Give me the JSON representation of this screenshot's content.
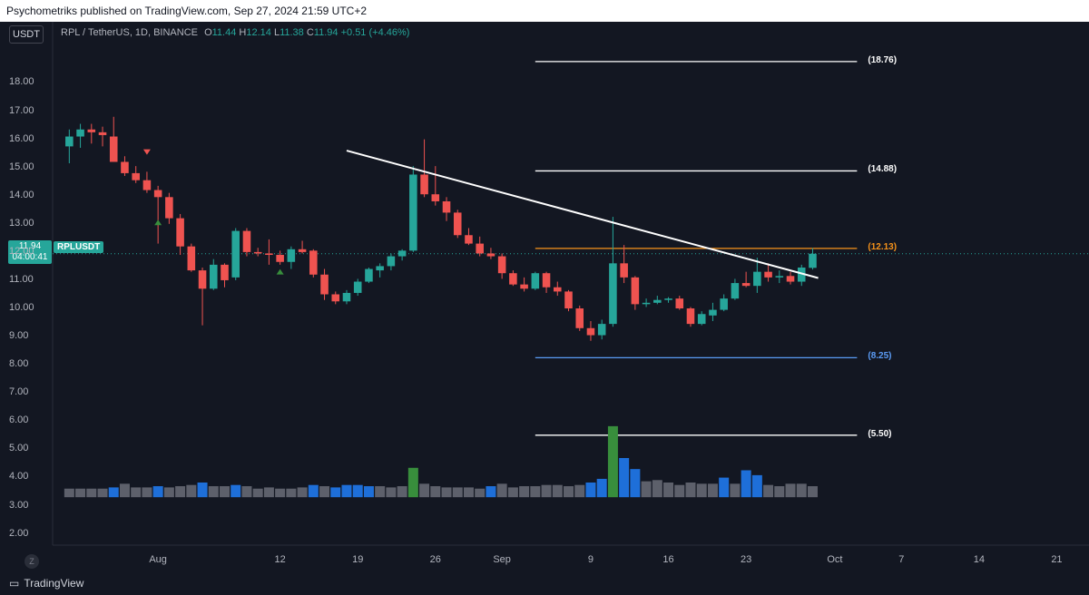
{
  "header": {
    "publisher_text": "Psychometriks published on TradingView.com, Sep 27, 2024 21:59 UTC+2"
  },
  "toolbar": {
    "currency_button": "USDT",
    "reset_button": "Z"
  },
  "legend": {
    "symbol": "RPL / TetherUS, 1D, BINANCE",
    "o_label": "O",
    "o_value": "11.44",
    "h_label": "H",
    "h_value": "12.14",
    "l_label": "L",
    "l_value": "11.38",
    "c_label": "C",
    "c_value": "11.94",
    "change": "+0.51 (+4.46%)"
  },
  "price_tag": {
    "price": "11.94",
    "countdown": "04:00:41",
    "symbol": "RPLUSDT"
  },
  "branding": {
    "name": "TradingView"
  },
  "colors": {
    "bull": "#26a69a",
    "bear": "#ef5350",
    "vol_normal": "#5d606b",
    "vol_blue": "#1e6fd9",
    "vol_green": "#388e3c",
    "orange": "#f7931a",
    "blue_level": "#5b9cf6"
  },
  "chart_data": {
    "type": "candlestick",
    "symbol": "RPLUSDT",
    "y_axis": {
      "ticks": [
        2,
        3,
        4,
        5,
        6,
        7,
        8,
        9,
        10,
        11,
        12,
        13,
        14,
        15,
        16,
        17,
        18
      ],
      "tick_labels": [
        "2.00",
        "3.00",
        "4.00",
        "5.00",
        "6.00",
        "7.00",
        "8.00",
        "9.00",
        "10.00",
        "11.00",
        "12.00",
        "13.00",
        "14.00",
        "15.00",
        "16.00",
        "17.00",
        "18.00"
      ],
      "ylim": [
        1.6,
        19.4
      ]
    },
    "x_axis": {
      "start_date": "2024-07-24",
      "xlim": [
        -1.5,
        87
      ],
      "ticks": [
        {
          "label": "Aug",
          "day": 8
        },
        {
          "label": "12",
          "day": 19
        },
        {
          "label": "19",
          "day": 26
        },
        {
          "label": "26",
          "day": 33
        },
        {
          "label": "Sep",
          "day": 39
        },
        {
          "label": "9",
          "day": 47
        },
        {
          "label": "16",
          "day": 54
        },
        {
          "label": "23",
          "day": 61
        },
        {
          "label": "Oct",
          "day": 69
        },
        {
          "label": "7",
          "day": 75
        },
        {
          "label": "14",
          "day": 82
        },
        {
          "label": "21",
          "day": 89
        }
      ]
    },
    "candles": [
      {
        "o": 15.75,
        "h": 16.35,
        "l": 15.15,
        "c": 16.1
      },
      {
        "o": 16.1,
        "h": 16.55,
        "l": 15.7,
        "c": 16.35
      },
      {
        "o": 16.35,
        "h": 16.55,
        "l": 15.85,
        "c": 16.25
      },
      {
        "o": 16.25,
        "h": 16.45,
        "l": 15.75,
        "c": 16.15
      },
      {
        "o": 16.1,
        "h": 16.8,
        "l": 15.3,
        "c": 15.2
      },
      {
        "o": 15.2,
        "h": 15.4,
        "l": 14.7,
        "c": 14.8
      },
      {
        "o": 14.8,
        "h": 15.05,
        "l": 14.45,
        "c": 14.55
      },
      {
        "o": 14.55,
        "h": 14.85,
        "l": 14.1,
        "c": 14.2
      },
      {
        "o": 14.2,
        "h": 14.35,
        "l": 12.3,
        "c": 13.95
      },
      {
        "o": 13.95,
        "h": 14.1,
        "l": 13.0,
        "c": 13.2
      },
      {
        "o": 13.2,
        "h": 13.35,
        "l": 11.9,
        "c": 12.2
      },
      {
        "o": 12.2,
        "h": 12.3,
        "l": 11.3,
        "c": 11.35
      },
      {
        "o": 11.35,
        "h": 11.45,
        "l": 9.4,
        "c": 10.7
      },
      {
        "o": 10.7,
        "h": 11.75,
        "l": 10.65,
        "c": 11.55
      },
      {
        "o": 11.55,
        "h": 11.6,
        "l": 10.75,
        "c": 11.0
      },
      {
        "o": 11.1,
        "h": 12.85,
        "l": 11.0,
        "c": 12.75
      },
      {
        "o": 12.75,
        "h": 12.85,
        "l": 11.85,
        "c": 12.0
      },
      {
        "o": 12.0,
        "h": 12.15,
        "l": 11.85,
        "c": 11.95
      },
      {
        "o": 11.95,
        "h": 12.45,
        "l": 11.55,
        "c": 11.9
      },
      {
        "o": 11.9,
        "h": 12.05,
        "l": 11.55,
        "c": 11.65
      },
      {
        "o": 11.65,
        "h": 12.2,
        "l": 11.4,
        "c": 12.1
      },
      {
        "o": 12.1,
        "h": 12.4,
        "l": 11.95,
        "c": 12.0
      },
      {
        "o": 12.05,
        "h": 12.1,
        "l": 11.1,
        "c": 11.2
      },
      {
        "o": 11.2,
        "h": 11.4,
        "l": 10.3,
        "c": 10.5
      },
      {
        "o": 10.5,
        "h": 10.6,
        "l": 10.15,
        "c": 10.25
      },
      {
        "o": 10.25,
        "h": 10.65,
        "l": 10.15,
        "c": 10.55
      },
      {
        "o": 10.55,
        "h": 11.05,
        "l": 10.45,
        "c": 10.95
      },
      {
        "o": 10.95,
        "h": 11.45,
        "l": 10.9,
        "c": 11.4
      },
      {
        "o": 11.35,
        "h": 11.6,
        "l": 11.1,
        "c": 11.5
      },
      {
        "o": 11.5,
        "h": 11.95,
        "l": 11.35,
        "c": 11.85
      },
      {
        "o": 11.85,
        "h": 12.1,
        "l": 11.7,
        "c": 12.05
      },
      {
        "o": 12.05,
        "h": 15.05,
        "l": 12.0,
        "c": 14.75
      },
      {
        "o": 14.75,
        "h": 16.0,
        "l": 13.95,
        "c": 14.05
      },
      {
        "o": 14.05,
        "h": 15.05,
        "l": 13.65,
        "c": 13.8
      },
      {
        "o": 13.8,
        "h": 13.95,
        "l": 13.1,
        "c": 13.4
      },
      {
        "o": 13.4,
        "h": 13.5,
        "l": 12.5,
        "c": 12.6
      },
      {
        "o": 12.6,
        "h": 12.85,
        "l": 12.25,
        "c": 12.3
      },
      {
        "o": 12.3,
        "h": 12.55,
        "l": 11.85,
        "c": 11.95
      },
      {
        "o": 11.95,
        "h": 12.15,
        "l": 11.75,
        "c": 11.85
      },
      {
        "o": 11.85,
        "h": 11.95,
        "l": 11.05,
        "c": 11.25
      },
      {
        "o": 11.25,
        "h": 11.35,
        "l": 10.8,
        "c": 10.85
      },
      {
        "o": 10.85,
        "h": 11.1,
        "l": 10.6,
        "c": 10.7
      },
      {
        "o": 10.7,
        "h": 11.3,
        "l": 10.65,
        "c": 11.25
      },
      {
        "o": 11.25,
        "h": 11.3,
        "l": 10.55,
        "c": 10.75
      },
      {
        "o": 10.75,
        "h": 10.95,
        "l": 10.45,
        "c": 10.6
      },
      {
        "o": 10.6,
        "h": 10.65,
        "l": 9.9,
        "c": 10.0
      },
      {
        "o": 10.0,
        "h": 10.1,
        "l": 9.2,
        "c": 9.3
      },
      {
        "o": 9.3,
        "h": 9.55,
        "l": 8.85,
        "c": 9.05
      },
      {
        "o": 9.05,
        "h": 9.6,
        "l": 8.9,
        "c": 9.45
      },
      {
        "o": 9.45,
        "h": 13.25,
        "l": 9.35,
        "c": 11.6
      },
      {
        "o": 11.6,
        "h": 12.25,
        "l": 10.9,
        "c": 11.1
      },
      {
        "o": 11.1,
        "h": 11.15,
        "l": 9.95,
        "c": 10.15
      },
      {
        "o": 10.15,
        "h": 10.35,
        "l": 10.05,
        "c": 10.2
      },
      {
        "o": 10.2,
        "h": 10.45,
        "l": 10.15,
        "c": 10.3
      },
      {
        "o": 10.3,
        "h": 10.4,
        "l": 10.2,
        "c": 10.35
      },
      {
        "o": 10.35,
        "h": 10.45,
        "l": 9.95,
        "c": 10.0
      },
      {
        "o": 10.0,
        "h": 10.05,
        "l": 9.35,
        "c": 9.45
      },
      {
        "o": 9.45,
        "h": 9.9,
        "l": 9.4,
        "c": 9.8
      },
      {
        "o": 9.75,
        "h": 10.2,
        "l": 9.55,
        "c": 9.95
      },
      {
        "o": 9.95,
        "h": 10.5,
        "l": 9.9,
        "c": 10.35
      },
      {
        "o": 10.35,
        "h": 11.05,
        "l": 10.3,
        "c": 10.9
      },
      {
        "o": 10.9,
        "h": 11.3,
        "l": 10.75,
        "c": 10.8
      },
      {
        "o": 10.8,
        "h": 11.8,
        "l": 10.55,
        "c": 11.3
      },
      {
        "o": 11.3,
        "h": 11.6,
        "l": 10.95,
        "c": 11.1
      },
      {
        "o": 11.1,
        "h": 11.35,
        "l": 10.9,
        "c": 11.15
      },
      {
        "o": 11.15,
        "h": 11.3,
        "l": 10.85,
        "c": 10.95
      },
      {
        "o": 10.95,
        "h": 11.55,
        "l": 10.8,
        "c": 11.45
      },
      {
        "o": 11.44,
        "h": 12.14,
        "l": 11.38,
        "c": 11.94
      }
    ],
    "volume": [
      0.35,
      0.35,
      0.35,
      0.35,
      0.4,
      0.55,
      0.4,
      0.4,
      0.45,
      0.4,
      0.45,
      0.5,
      0.6,
      0.45,
      0.45,
      0.5,
      0.45,
      0.35,
      0.4,
      0.35,
      0.35,
      0.4,
      0.5,
      0.45,
      0.4,
      0.5,
      0.5,
      0.45,
      0.45,
      0.4,
      0.45,
      1.2,
      0.55,
      0.45,
      0.4,
      0.4,
      0.4,
      0.35,
      0.45,
      0.55,
      0.4,
      0.45,
      0.45,
      0.5,
      0.5,
      0.45,
      0.5,
      0.6,
      0.75,
      2.9,
      1.6,
      1.15,
      0.65,
      0.7,
      0.6,
      0.5,
      0.6,
      0.55,
      0.55,
      0.8,
      0.55,
      1.1,
      0.9,
      0.5,
      0.45,
      0.55,
      0.55,
      0.45
    ],
    "volume_highlight": {
      "blue": [
        4,
        8,
        12,
        15,
        22,
        24,
        25,
        26,
        27,
        38,
        47,
        48,
        50,
        51,
        59,
        61,
        62
      ],
      "green": [
        31,
        49
      ]
    },
    "volume_scale": {
      "unit_pixels_per_point": 27,
      "base_price": 3.3
    },
    "signals": [
      {
        "type": "sell",
        "day": 7,
        "price": 15.55
      },
      {
        "type": "buy",
        "day": 8,
        "price": 13.05
      },
      {
        "type": "buy",
        "day": 19,
        "price": 11.3
      }
    ],
    "trendline": {
      "from": {
        "day": 25,
        "price": 15.6
      },
      "to": {
        "day": 67.5,
        "price": 11.08
      }
    },
    "levels": [
      {
        "price": 18.76,
        "label": "(18.76)",
        "color": "#ffffff"
      },
      {
        "price": 14.88,
        "label": "(14.88)",
        "color": "#ffffff"
      },
      {
        "price": 12.13,
        "label": "(12.13)",
        "color": "#f7931a"
      },
      {
        "price": 8.25,
        "label": "(8.25)",
        "color": "#5b9cf6"
      },
      {
        "price": 5.5,
        "label": "(5.50)",
        "color": "#ffffff"
      }
    ],
    "levels_day_range": [
      42,
      71
    ],
    "current_price": 11.94
  }
}
